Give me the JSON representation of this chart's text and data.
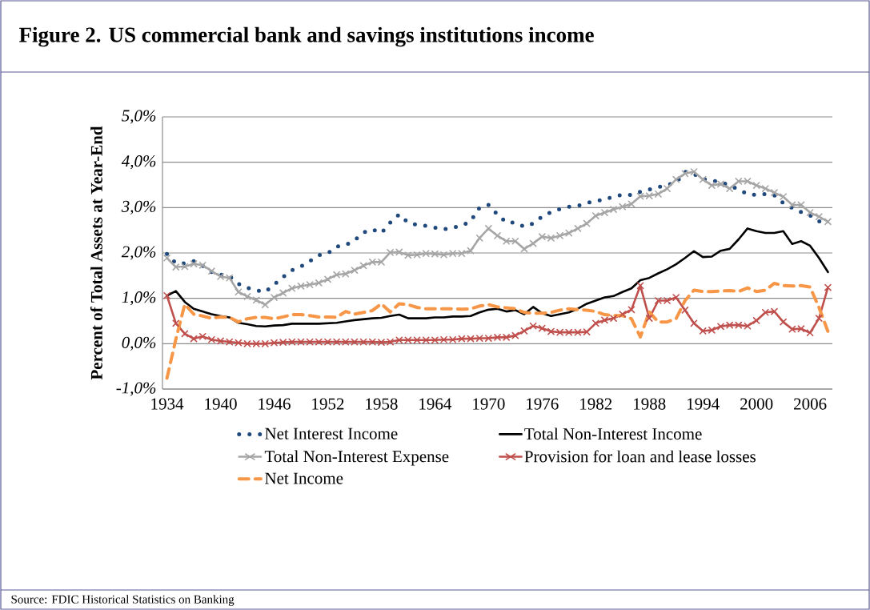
{
  "chart_data": {
    "type": "line",
    "title": "Figure 2. US commercial bank and savings institutions income",
    "ylabel": "Percent of Total Assets at Year-End",
    "annotations": [
      "Source: FDIC Historical Statistics on Banking"
    ],
    "categories": [
      "1934",
      null,
      null,
      null,
      null,
      null,
      "1940",
      null,
      null,
      null,
      null,
      null,
      "1946",
      null,
      null,
      null,
      null,
      null,
      "1952",
      null,
      null,
      null,
      null,
      null,
      "1958",
      null,
      null,
      null,
      null,
      null,
      "1964",
      null,
      null,
      null,
      null,
      null,
      "1970",
      null,
      null,
      null,
      null,
      null,
      "1976",
      null,
      null,
      null,
      null,
      null,
      "1982",
      null,
      null,
      null,
      null,
      null,
      "1988",
      null,
      null,
      null,
      null,
      null,
      "1994",
      null,
      null,
      null,
      null,
      null,
      "2000",
      null,
      null,
      null,
      null,
      null,
      "2006",
      null,
      null
    ],
    "ylim": [
      -1,
      5
    ],
    "yticks": [
      {
        "value": -1,
        "label": "-1,0%"
      },
      {
        "value": 0,
        "label": "0,0%"
      },
      {
        "value": 1,
        "label": "1,0%"
      },
      {
        "value": 2,
        "label": "2,0%"
      },
      {
        "value": 3,
        "label": "3,0%"
      },
      {
        "value": 4,
        "label": "4,0%"
      },
      {
        "value": 5,
        "label": "5,0%"
      }
    ],
    "grid": "y",
    "legend": "bottom",
    "series": [
      {
        "name": "Net Interest Income",
        "color": "#1f497d",
        "line_style": "dotted",
        "marker": "none",
        "values": [
          1.98,
          1.77,
          1.77,
          1.82,
          1.72,
          1.58,
          1.52,
          1.49,
          1.32,
          1.23,
          1.18,
          1.14,
          1.3,
          1.47,
          1.62,
          1.7,
          1.82,
          1.95,
          1.99,
          2.14,
          2.17,
          2.28,
          2.45,
          2.52,
          2.44,
          2.67,
          2.85,
          2.67,
          2.62,
          2.6,
          2.56,
          2.52,
          2.56,
          2.6,
          2.7,
          3.0,
          3.06,
          2.85,
          2.67,
          2.67,
          2.58,
          2.65,
          2.8,
          2.9,
          2.97,
          3.02,
          3.04,
          3.1,
          3.15,
          3.17,
          3.25,
          3.28,
          3.28,
          3.35,
          3.4,
          3.45,
          3.5,
          3.55,
          3.79,
          3.74,
          3.63,
          3.6,
          3.56,
          3.49,
          3.4,
          3.3,
          3.28,
          3.3,
          3.27,
          3.1,
          2.99,
          2.9,
          2.83,
          2.7,
          2.68
        ]
      },
      {
        "name": "Total Non-Interest Income",
        "color": "#000000",
        "line_style": "solid",
        "marker": "none",
        "values": [
          1.06,
          1.16,
          0.92,
          0.77,
          0.71,
          0.65,
          0.61,
          0.58,
          0.46,
          0.43,
          0.39,
          0.38,
          0.4,
          0.41,
          0.44,
          0.44,
          0.44,
          0.44,
          0.45,
          0.46,
          0.49,
          0.52,
          0.54,
          0.56,
          0.57,
          0.61,
          0.64,
          0.56,
          0.56,
          0.56,
          0.58,
          0.58,
          0.6,
          0.6,
          0.61,
          0.69,
          0.75,
          0.77,
          0.71,
          0.74,
          0.65,
          0.81,
          0.67,
          0.61,
          0.65,
          0.69,
          0.77,
          0.88,
          0.95,
          1.02,
          1.05,
          1.14,
          1.22,
          1.4,
          1.45,
          1.55,
          1.64,
          1.75,
          1.89,
          2.04,
          1.91,
          1.92,
          2.05,
          2.09,
          2.3,
          2.54,
          2.48,
          2.44,
          2.44,
          2.48,
          2.2,
          2.26,
          2.16,
          1.89,
          1.58
        ]
      },
      {
        "name": "Total Non-Interest Expense",
        "color": "#a6a6a6",
        "line_style": "solid",
        "marker": "cross",
        "values": [
          1.89,
          1.69,
          1.7,
          1.76,
          1.73,
          1.6,
          1.48,
          1.45,
          1.14,
          1.04,
          0.96,
          0.86,
          1.02,
          1.12,
          1.22,
          1.27,
          1.3,
          1.34,
          1.42,
          1.52,
          1.54,
          1.62,
          1.72,
          1.8,
          1.8,
          2.01,
          2.02,
          1.95,
          1.96,
          1.99,
          1.98,
          1.96,
          1.99,
          1.99,
          2.05,
          2.33,
          2.54,
          2.38,
          2.26,
          2.26,
          2.09,
          2.21,
          2.36,
          2.33,
          2.38,
          2.44,
          2.54,
          2.65,
          2.82,
          2.89,
          2.96,
          3.02,
          3.08,
          3.25,
          3.26,
          3.3,
          3.42,
          3.62,
          3.75,
          3.79,
          3.62,
          3.49,
          3.52,
          3.42,
          3.58,
          3.58,
          3.49,
          3.42,
          3.33,
          3.24,
          3.06,
          3.06,
          2.89,
          2.8,
          2.69
        ]
      },
      {
        "name": "Provision for loan and lease losses",
        "color": "#c0504d",
        "line_style": "solid",
        "marker": "cross",
        "values": [
          1.06,
          0.45,
          0.22,
          0.11,
          0.16,
          0.09,
          0.06,
          0.04,
          0.02,
          0.0,
          0.0,
          0.0,
          0.02,
          0.03,
          0.04,
          0.04,
          0.04,
          0.04,
          0.04,
          0.04,
          0.04,
          0.04,
          0.04,
          0.04,
          0.03,
          0.04,
          0.08,
          0.08,
          0.08,
          0.08,
          0.08,
          0.09,
          0.09,
          0.11,
          0.11,
          0.12,
          0.12,
          0.14,
          0.14,
          0.18,
          0.28,
          0.39,
          0.34,
          0.27,
          0.25,
          0.25,
          0.25,
          0.26,
          0.45,
          0.52,
          0.56,
          0.65,
          0.75,
          1.28,
          0.56,
          0.95,
          0.95,
          1.02,
          0.74,
          0.45,
          0.28,
          0.3,
          0.38,
          0.41,
          0.41,
          0.39,
          0.51,
          0.69,
          0.71,
          0.48,
          0.32,
          0.33,
          0.24,
          0.56,
          1.24
        ]
      },
      {
        "name": "Net Income",
        "color": "#f79646",
        "line_style": "dashed",
        "marker": "none",
        "values": [
          -0.76,
          0.1,
          0.87,
          0.65,
          0.61,
          0.56,
          0.59,
          0.58,
          0.48,
          0.55,
          0.58,
          0.58,
          0.55,
          0.59,
          0.64,
          0.64,
          0.62,
          0.59,
          0.59,
          0.58,
          0.71,
          0.65,
          0.69,
          0.73,
          0.88,
          0.7,
          0.88,
          0.86,
          0.8,
          0.77,
          0.77,
          0.77,
          0.77,
          0.76,
          0.77,
          0.83,
          0.86,
          0.81,
          0.79,
          0.77,
          0.69,
          0.67,
          0.67,
          0.69,
          0.74,
          0.77,
          0.75,
          0.74,
          0.71,
          0.64,
          0.62,
          0.62,
          0.55,
          0.15,
          0.7,
          0.48,
          0.48,
          0.55,
          0.95,
          1.18,
          1.15,
          1.15,
          1.16,
          1.17,
          1.15,
          1.23,
          1.15,
          1.18,
          1.33,
          1.28,
          1.27,
          1.28,
          1.25,
          0.8,
          0.27
        ]
      }
    ]
  }
}
